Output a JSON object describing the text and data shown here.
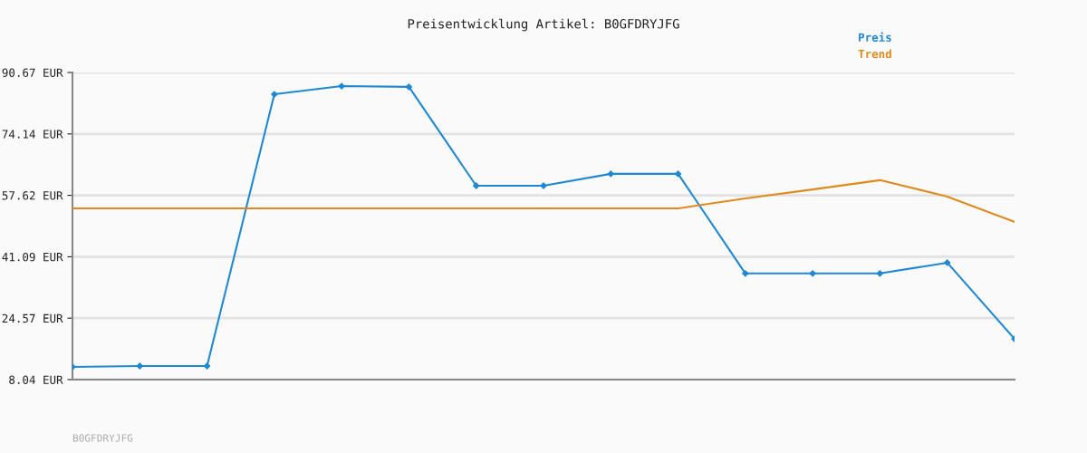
{
  "chart_data": {
    "type": "line",
    "title": "Preisentwicklung Artikel: B0GFDRYJFG",
    "categories": [
      null,
      null,
      null,
      null,
      null,
      null,
      null,
      null,
      null,
      null,
      null,
      null,
      null,
      null,
      null
    ],
    "series": [
      {
        "name": "Preis",
        "color": "#1f88d2",
        "marker": "diamond",
        "values": [
          11.45,
          11.7,
          11.7,
          84.8,
          87.0,
          86.8,
          60.2,
          60.2,
          63.4,
          63.4,
          36.6,
          36.6,
          36.6,
          39.5,
          19.0
        ]
      },
      {
        "name": "Trend",
        "color": "#e08a1e",
        "marker": "none",
        "values": [
          54.1,
          54.1,
          54.1,
          54.1,
          54.1,
          54.1,
          54.1,
          54.1,
          54.1,
          54.1,
          56.8,
          59.2,
          61.7,
          57.3,
          50.5
        ]
      }
    ],
    "ylim": [
      8.04,
      90.67
    ],
    "yticks": [
      {
        "value": 8.04,
        "label": "8.04 EUR"
      },
      {
        "value": 24.57,
        "label": "24.57 EUR"
      },
      {
        "value": 41.09,
        "label": "41.09 EUR"
      },
      {
        "value": 57.62,
        "label": "57.62 EUR"
      },
      {
        "value": 74.14,
        "label": "74.14 EUR"
      },
      {
        "value": 90.67,
        "label": "90.67 EUR"
      }
    ],
    "tick_labels": "y",
    "grid": "y",
    "legend": "top right",
    "annotations": [
      "B0GFDRYJFG"
    ]
  }
}
